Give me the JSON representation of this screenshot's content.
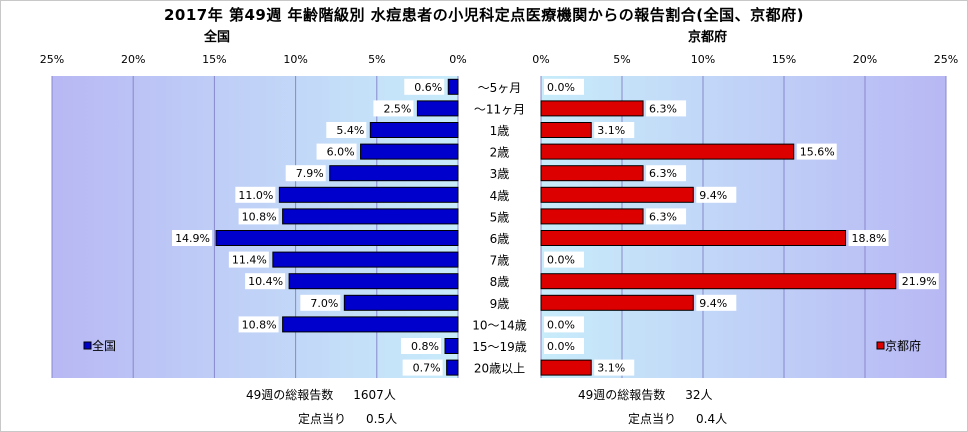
{
  "chart_data": {
    "type": "bar",
    "title": "2017年 第49週 年齢階級別 水痘患者の小児科定点医療機関からの報告割合(全国、京都府)",
    "categories": [
      "～5ヶ月",
      "～11ヶ月",
      "1歳",
      "2歳",
      "3歳",
      "4歳",
      "5歳",
      "6歳",
      "7歳",
      "8歳",
      "9歳",
      "10～14歳",
      "15～19歳",
      "20歳以上"
    ],
    "xlim": [
      0,
      25
    ],
    "ticks": [
      "25%",
      "20%",
      "15%",
      "10%",
      "5%",
      "0%"
    ],
    "ticks_right": [
      "0%",
      "5%",
      "10%",
      "15%",
      "20%",
      "25%"
    ],
    "grid": true,
    "series": [
      {
        "name": "全国",
        "panel_title": "全国",
        "color": "#0000cc",
        "values": [
          0.6,
          2.5,
          5.4,
          6.0,
          7.9,
          11.0,
          10.8,
          14.9,
          11.4,
          10.4,
          7.0,
          10.8,
          0.8,
          0.7
        ],
        "labels": [
          "0.6%",
          "2.5%",
          "5.4%",
          "6.0%",
          "7.9%",
          "11.0%",
          "10.8%",
          "14.9%",
          "11.4%",
          "10.4%",
          "7.0%",
          "10.8%",
          "0.8%",
          "0.7%"
        ],
        "legend": "全国",
        "legend_position": "bottom-left"
      },
      {
        "name": "京都府",
        "panel_title": "京都府",
        "color": "#dd0000",
        "values": [
          0.0,
          6.3,
          3.1,
          15.6,
          6.3,
          9.4,
          6.3,
          18.8,
          0.0,
          21.9,
          9.4,
          0.0,
          0.0,
          3.1
        ],
        "labels": [
          "0.0%",
          "6.3%",
          "3.1%",
          "15.6%",
          "6.3%",
          "9.4%",
          "6.3%",
          "18.8%",
          "0.0%",
          "21.9%",
          "9.4%",
          "0.0%",
          "0.0%",
          "3.1%"
        ],
        "legend": "京都府",
        "legend_position": "bottom-right"
      }
    ]
  },
  "footer": {
    "national": {
      "reports_label": "49週の総報告数",
      "reports_value": "1607人",
      "per_site_label": "定点当り",
      "per_site_value": "0.5人"
    },
    "kyoto": {
      "reports_label": "49週の総報告数",
      "reports_value": "32人",
      "per_site_label": "定点当り",
      "per_site_value": "0.4人"
    }
  }
}
